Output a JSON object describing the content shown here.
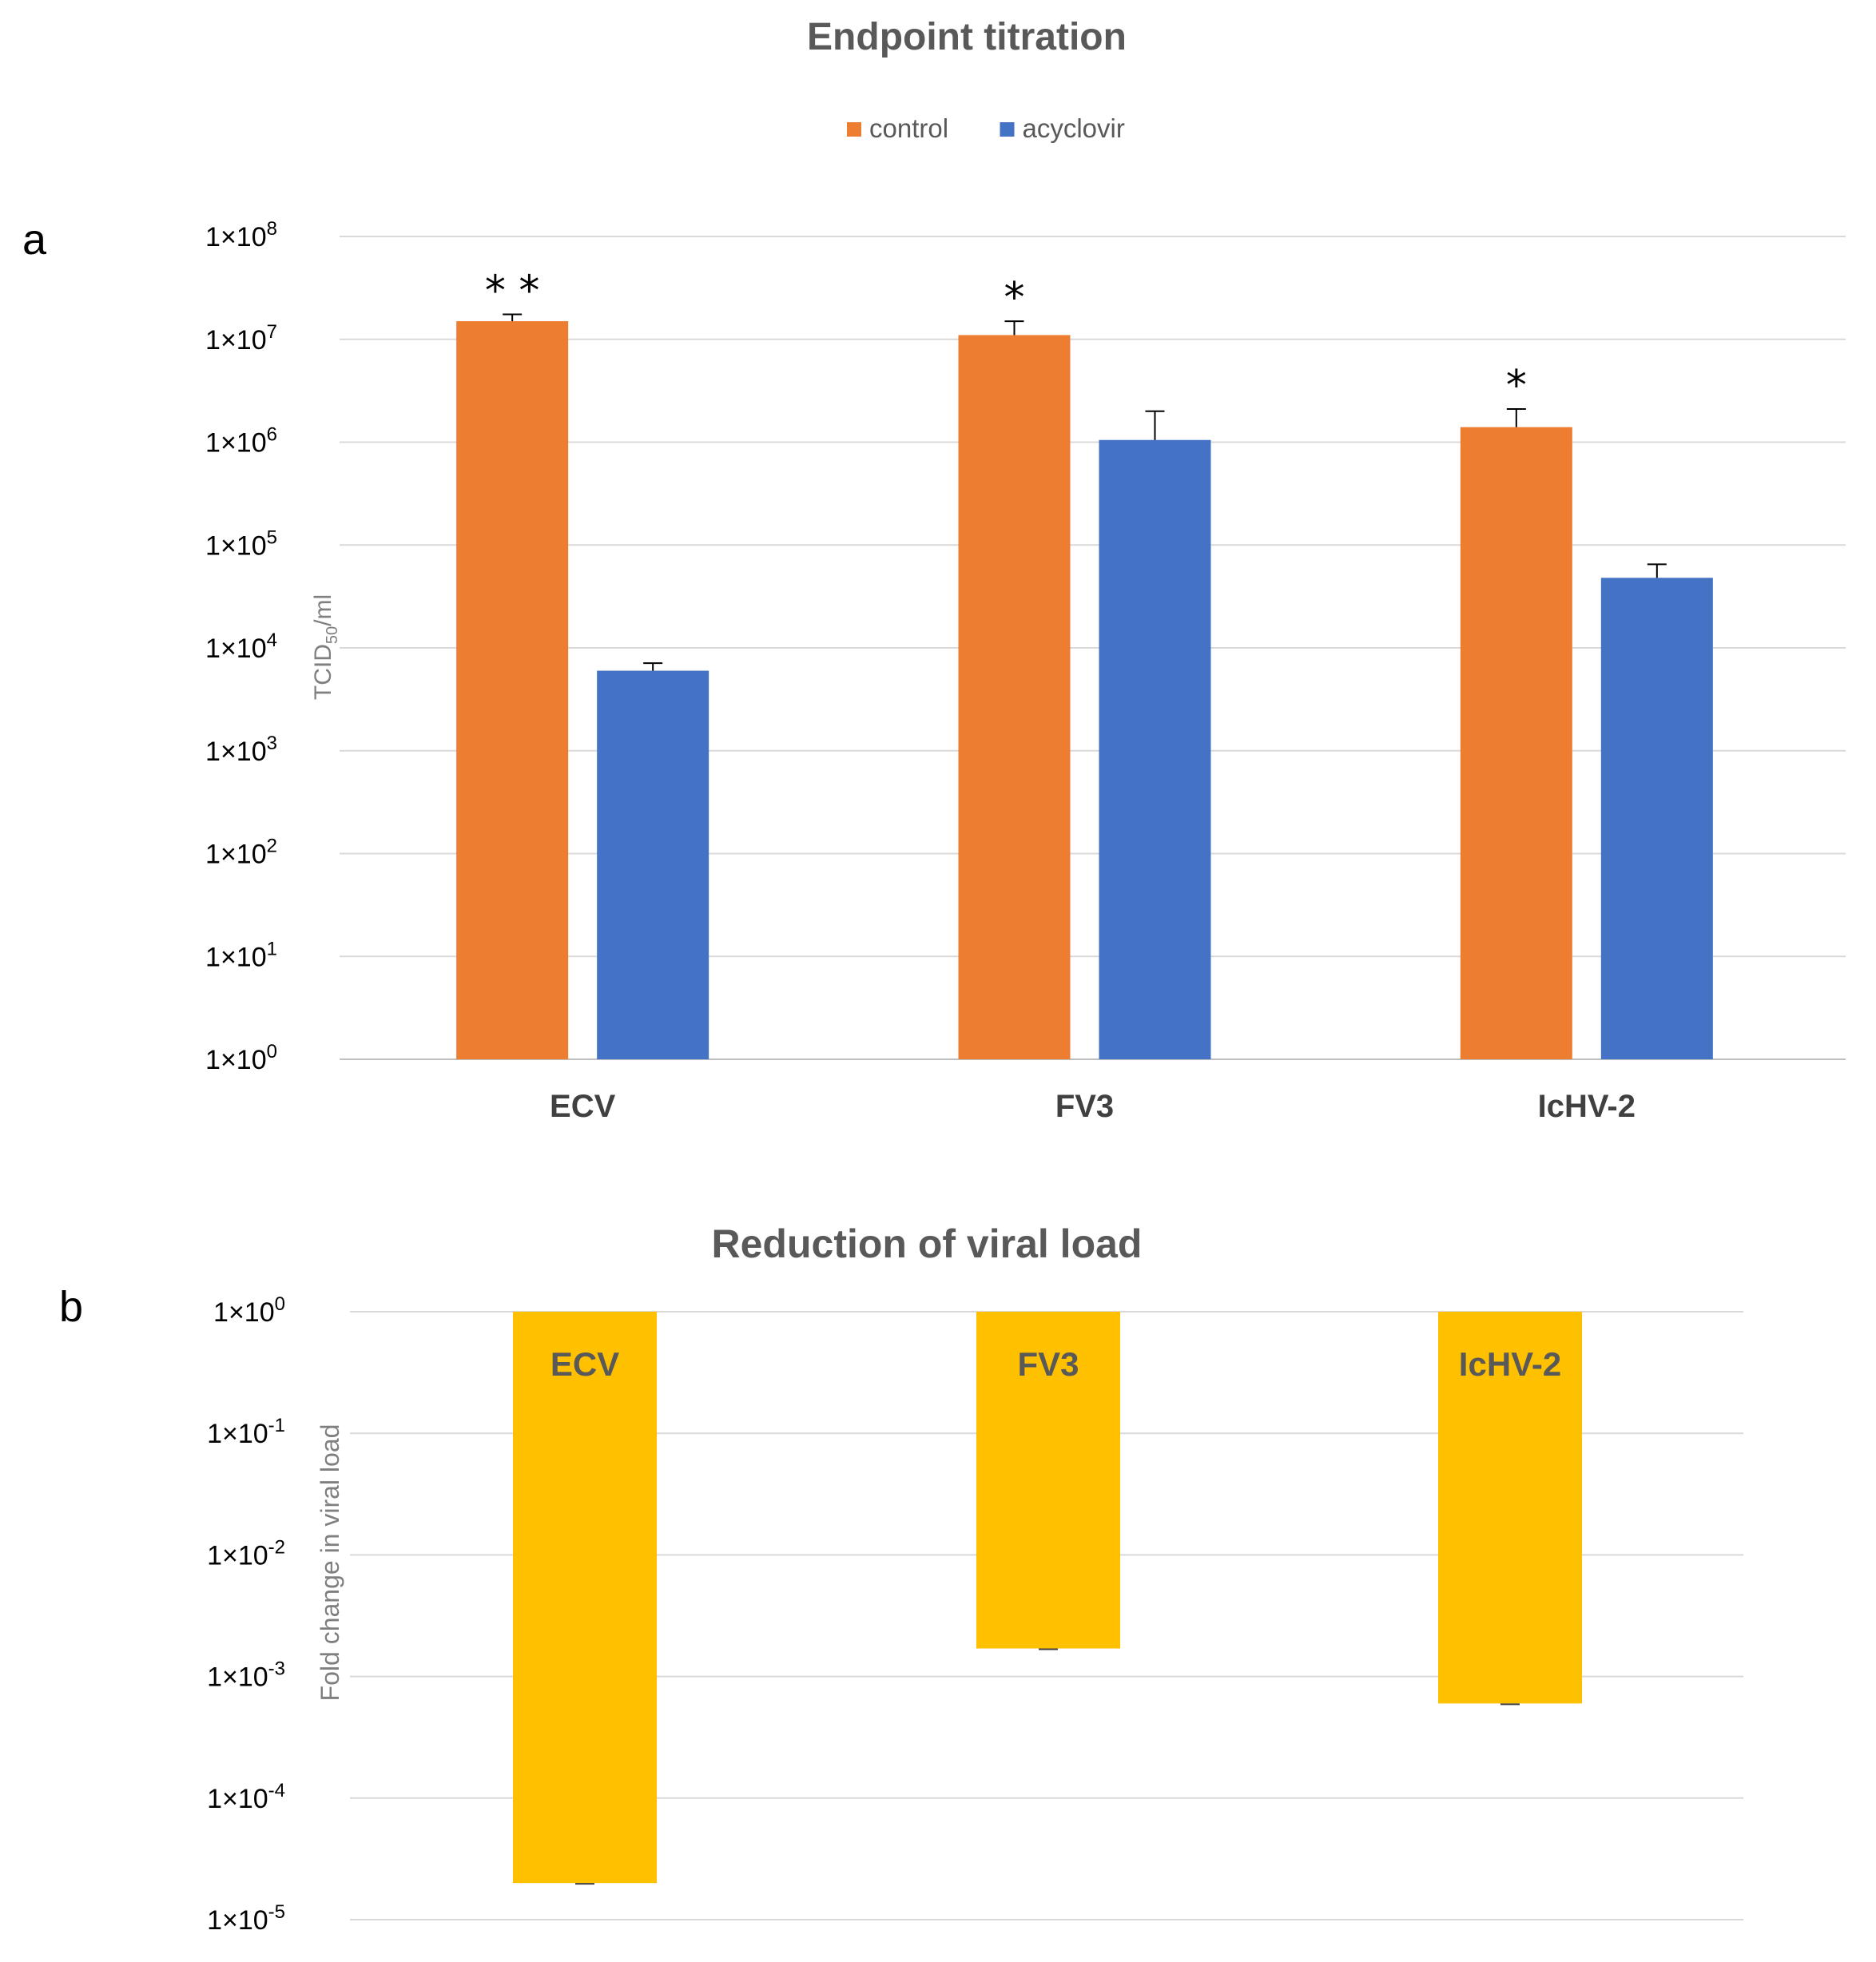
{
  "chart_data": [
    {
      "type": "bar",
      "panel": "a",
      "title": "Endpoint titration",
      "ylabel": "TCID50/ml",
      "ylabel_main": "TCID",
      "ylabel_sub": "50",
      "ylabel_tail": "/ml",
      "yscale": "log",
      "ylim": [
        1,
        100000000
      ],
      "yticks": [
        {
          "base": "1x10",
          "exp": "0",
          "value": 1
        },
        {
          "base": "1x10",
          "exp": "1",
          "value": 10
        },
        {
          "base": "1x10",
          "exp": "2",
          "value": 100
        },
        {
          "base": "1x10",
          "exp": "3",
          "value": 1000
        },
        {
          "base": "1x10",
          "exp": "4",
          "value": 10000
        },
        {
          "base": "1x10",
          "exp": "5",
          "value": 100000
        },
        {
          "base": "1x10",
          "exp": "6",
          "value": 1000000
        },
        {
          "base": "1x10",
          "exp": "7",
          "value": 10000000
        },
        {
          "base": "1x10",
          "exp": "8",
          "value": 100000000
        }
      ],
      "categories": [
        "ECV",
        "FV3",
        "IcHV-2"
      ],
      "legend_position": "top-center",
      "grid": true,
      "series": [
        {
          "name": "control",
          "color": "#ED7D31",
          "values": [
            15000000,
            11000000,
            1400000
          ],
          "errors_upper": [
            17500000,
            15000000,
            2100000
          ]
        },
        {
          "name": "acyclovir",
          "color": "#4472C4",
          "values": [
            6000,
            1050000,
            48000
          ],
          "errors_upper": [
            7100,
            2000000,
            65000
          ]
        }
      ],
      "annotations": [
        {
          "category": "ECV",
          "text": "**"
        },
        {
          "category": "FV3",
          "text": "*"
        },
        {
          "category": "IcHV-2",
          "text": "*"
        }
      ]
    },
    {
      "type": "bar",
      "panel": "b",
      "title": "Reduction of viral load",
      "ylabel": "Fold change in viral load",
      "yscale": "log",
      "ylim": [
        1e-05,
        1
      ],
      "yticks": [
        {
          "base": "1x10",
          "exp": "0",
          "value": 1
        },
        {
          "base": "1x10",
          "exp": "-1",
          "value": 0.1
        },
        {
          "base": "1x10",
          "exp": "-2",
          "value": 0.01
        },
        {
          "base": "1x10",
          "exp": "-3",
          "value": 0.001
        },
        {
          "base": "1x10",
          "exp": "-4",
          "value": 0.0001
        },
        {
          "base": "1x10",
          "exp": "-5",
          "value": 1e-05
        }
      ],
      "categories": [
        "ECV",
        "FV3",
        "IcHV-2"
      ],
      "grid": true,
      "series": [
        {
          "name": "fold change",
          "color": "#FFC000",
          "values": [
            2e-05,
            0.0017,
            0.0006
          ]
        }
      ]
    }
  ]
}
